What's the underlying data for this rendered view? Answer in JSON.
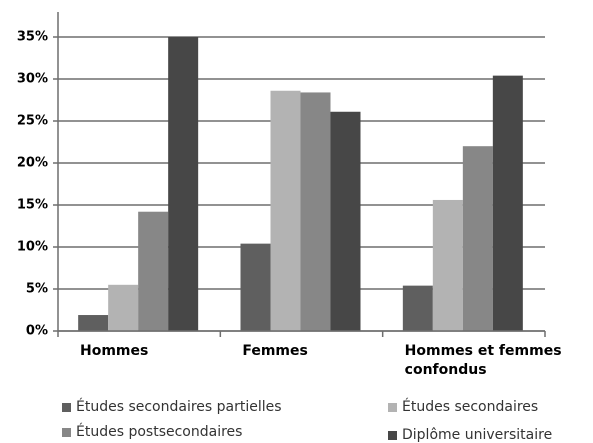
{
  "chart_data": {
    "type": "bar",
    "categories": [
      "Hommes",
      "Femmes",
      "Hommes et femmes confondus"
    ],
    "series": [
      {
        "name": "Études secondaires partielles",
        "color": "#5f5f5f",
        "values": [
          1.9,
          10.4,
          5.4
        ]
      },
      {
        "name": "Études secondaires",
        "color": "#b3b3b3",
        "values": [
          5.5,
          28.6,
          15.6
        ]
      },
      {
        "name": "Études postsecondaires",
        "color": "#878787",
        "values": [
          14.2,
          28.4,
          22.0
        ]
      },
      {
        "name": "Diplôme universitaire",
        "color": "#474747",
        "values": [
          35,
          26.1,
          30.4
        ]
      }
    ],
    "ylim": [
      0,
      35
    ],
    "yticks": [
      {
        "value": 0,
        "label": "0%"
      },
      {
        "value": 5,
        "label": "5%"
      },
      {
        "value": 10,
        "label": "10%"
      },
      {
        "value": 15,
        "label": "15%"
      },
      {
        "value": 20,
        "label": "20%"
      },
      {
        "value": 25,
        "label": "25%"
      },
      {
        "value": 30,
        "label": "30%"
      },
      {
        "value": 35,
        "label": "35%"
      }
    ],
    "grid": true,
    "legend": "bottom"
  }
}
